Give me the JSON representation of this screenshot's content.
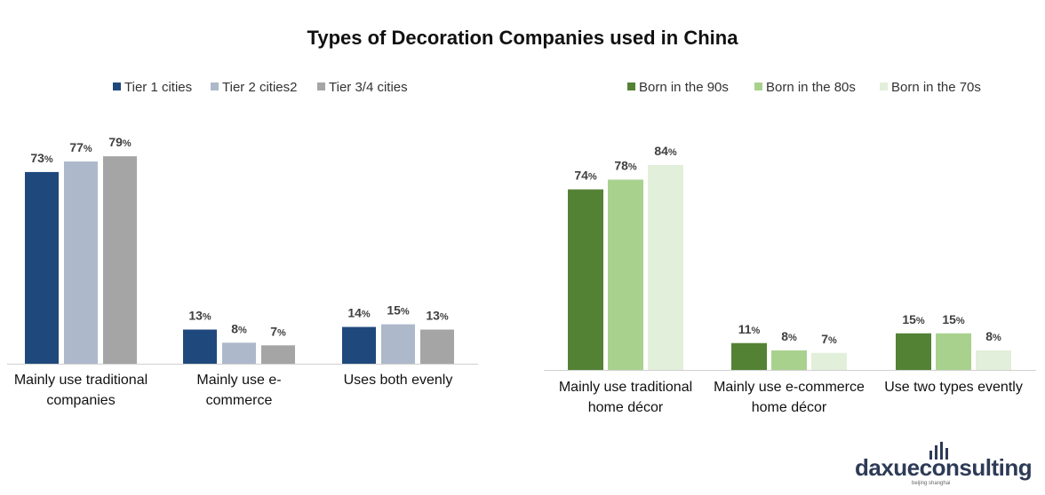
{
  "title": "Types of Decoration Companies used in China",
  "chart_data": [
    {
      "type": "bar",
      "categories": [
        [
          "Mainly use traditional",
          "companies"
        ],
        [
          "Mainly use e-",
          "commerce"
        ],
        [
          "Uses both evenly"
        ]
      ],
      "series": [
        {
          "name": "Tier 1 cities",
          "color": "#1f497d",
          "values": [
            73,
            13,
            14
          ]
        },
        {
          "name": "Tier 2 cities2",
          "color": "#adb9ca",
          "values": [
            77,
            8,
            15
          ]
        },
        {
          "name": "Tier 3/4 cities",
          "color": "#a5a5a5",
          "values": [
            79,
            7,
            13
          ]
        }
      ],
      "value_suffix": "%",
      "ylim": [
        0,
        100
      ],
      "grid": false,
      "legend_position": "top"
    },
    {
      "type": "bar",
      "categories": [
        [
          "Mainly use traditional",
          "home décor"
        ],
        [
          "Mainly use e-commerce",
          "home décor"
        ],
        [
          "Use two types evently"
        ]
      ],
      "series": [
        {
          "name": "Born in the 90s",
          "color": "#548235",
          "values": [
            74,
            11,
            15
          ]
        },
        {
          "name": "Born in the 80s",
          "color": "#a9d18e",
          "values": [
            78,
            8,
            15
          ]
        },
        {
          "name": "Born in the 70s",
          "color": "#e2efda",
          "values": [
            84,
            7,
            8
          ]
        }
      ],
      "value_suffix": "%",
      "ylim": [
        0,
        100
      ],
      "grid": false,
      "legend_position": "top"
    }
  ],
  "logo": {
    "brand_a": "daxue",
    "brand_b": "consulting",
    "tagline": "beijing shanghai"
  }
}
